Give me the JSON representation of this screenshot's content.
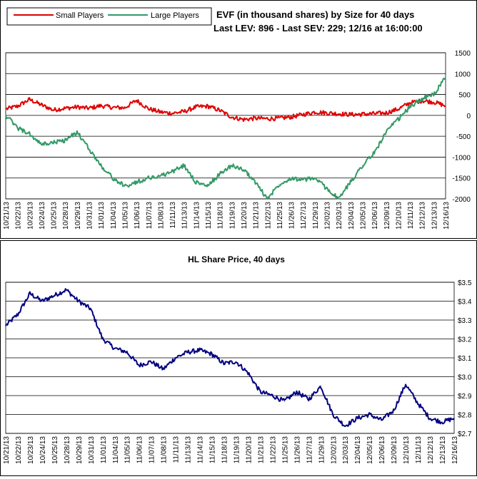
{
  "chart_data": [
    {
      "type": "line",
      "title_line1": "EVF (in thousand shares) by Size for 40 days",
      "title_line2": "Last LEV: 896 - Last SEV: 229; 12/16 at 16:00:00",
      "legend": [
        "Small Players",
        "Large Players"
      ],
      "legend_position": "top-left",
      "ylim": [
        -2000,
        1500
      ],
      "yticks": [
        "1500",
        "1000",
        "500",
        "0",
        "-500",
        "-1000",
        "-1500",
        "-2000"
      ],
      "ytick_values": [
        1500,
        1000,
        500,
        0,
        -500,
        -1000,
        -1500,
        -2000
      ],
      "grid": true,
      "categories": [
        "10/21/13",
        "10/22/13",
        "10/23/13",
        "10/24/13",
        "10/25/13",
        "10/28/13",
        "10/29/13",
        "10/31/13",
        "11/01/13",
        "11/04/13",
        "11/05/13",
        "11/06/13",
        "11/07/13",
        "11/08/13",
        "11/11/13",
        "11/13/13",
        "11/14/13",
        "11/15/13",
        "11/18/13",
        "11/19/13",
        "11/20/13",
        "11/21/13",
        "11/22/13",
        "11/25/13",
        "11/26/13",
        "11/27/13",
        "11/29/13",
        "12/02/13",
        "12/03/13",
        "12/04/13",
        "12/05/13",
        "12/06/13",
        "12/09/13",
        "12/10/13",
        "12/11/13",
        "12/12/13",
        "12/13/13",
        "12/16/13"
      ],
      "series": [
        {
          "name": "Small Players",
          "color": "#e00000",
          "values": [
            150,
            220,
            380,
            250,
            130,
            170,
            200,
            170,
            230,
            190,
            180,
            360,
            160,
            80,
            50,
            90,
            200,
            220,
            120,
            -40,
            -100,
            -70,
            -80,
            -70,
            -40,
            20,
            80,
            60,
            40,
            20,
            30,
            40,
            60,
            150,
            300,
            350,
            320,
            229
          ]
        },
        {
          "name": "Large Players",
          "color": "#339966",
          "values": [
            0,
            -300,
            -450,
            -700,
            -650,
            -600,
            -400,
            -800,
            -1200,
            -1500,
            -1700,
            -1600,
            -1500,
            -1450,
            -1350,
            -1200,
            -1600,
            -1700,
            -1400,
            -1200,
            -1300,
            -1600,
            -2000,
            -1650,
            -1500,
            -1550,
            -1500,
            -1750,
            -2000,
            -1600,
            -1200,
            -900,
            -400,
            -100,
            200,
            400,
            500,
            896
          ]
        }
      ]
    },
    {
      "type": "line",
      "title": "HL Share Price, 40 days",
      "ylim": [
        2.7,
        3.5
      ],
      "yticks": [
        "$3.5",
        "$3.4",
        "$3.3",
        "$3.2",
        "$3.1",
        "$3.0",
        "$2.9",
        "$2.8",
        "$2.7"
      ],
      "ytick_values": [
        3.5,
        3.4,
        3.3,
        3.2,
        3.1,
        3.0,
        2.9,
        2.8,
        2.7
      ],
      "grid": true,
      "categories": [
        "10/21/13",
        "10/22/13",
        "10/23/13",
        "10/24/13",
        "10/25/13",
        "10/28/13",
        "10/29/13",
        "10/31/13",
        "11/01/13",
        "11/04/13",
        "11/05/13",
        "11/06/13",
        "11/07/13",
        "11/08/13",
        "11/11/13",
        "11/13/13",
        "11/14/13",
        "11/15/13",
        "11/18/13",
        "11/19/13",
        "11/20/13",
        "11/21/13",
        "11/22/13",
        "11/25/13",
        "11/26/13",
        "11/27/13",
        "11/29/13",
        "12/02/13",
        "12/03/13",
        "12/04/13",
        "12/05/13",
        "12/06/13",
        "12/09/13",
        "12/10/13",
        "12/11/13",
        "12/12/13",
        "12/13/13",
        "12/16/13"
      ],
      "series": [
        {
          "name": "HL",
          "color": "#000080",
          "values": [
            3.27,
            3.33,
            3.44,
            3.4,
            3.43,
            3.46,
            3.4,
            3.36,
            3.2,
            3.15,
            3.13,
            3.06,
            3.08,
            3.04,
            3.1,
            3.13,
            3.14,
            3.12,
            3.07,
            3.08,
            3.02,
            2.92,
            2.9,
            2.87,
            2.92,
            2.88,
            2.95,
            2.8,
            2.74,
            2.78,
            2.8,
            2.77,
            2.82,
            2.96,
            2.86,
            2.78,
            2.76,
            2.78
          ]
        }
      ]
    }
  ]
}
